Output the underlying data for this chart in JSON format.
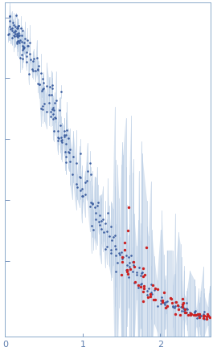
{
  "title": "",
  "xlabel": "",
  "ylabel": "",
  "xlim": [
    0,
    2.65
  ],
  "ylim": [
    -0.05,
    1.05
  ],
  "background_color": "#ffffff",
  "blue_color": "#3d5fa0",
  "blue_light_color": "#b8cce4",
  "red_color": "#cc2222",
  "tick_color": "#6080b0",
  "spine_color": "#8aaaca",
  "seed_blue": 7,
  "seed_red": 13
}
